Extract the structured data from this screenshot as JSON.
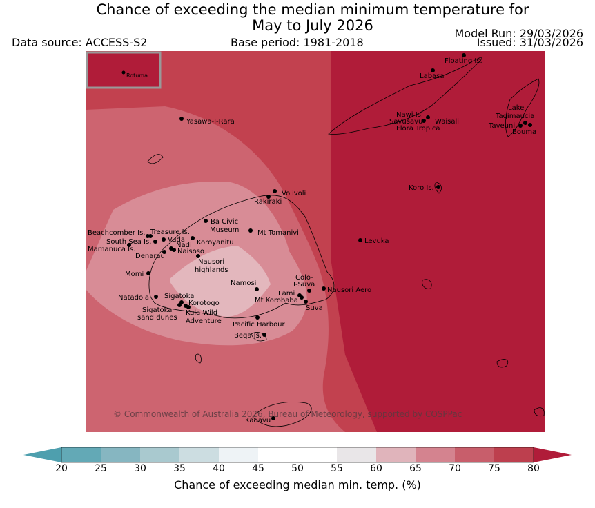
{
  "title": {
    "line1": "Chance of exceeding the median minimum temperature for",
    "line2": "May to July 2026"
  },
  "data_source": "Data source: ACCESS-S2",
  "base_period": "Base period: 1981-2018",
  "model_run": "Model Run: 29/03/2026",
  "issued": "Issued: 31/03/2026",
  "copyright": "© Commonwealth of Australia 2026, Bureau of Meteorology, supported by COSPPac",
  "inset_label": "Rotuma",
  "colorbar": {
    "label": "Chance of exceeding median min. temp. (%)",
    "ticks": [
      "20",
      "25",
      "30",
      "35",
      "40",
      "45",
      "50",
      "55",
      "60",
      "65",
      "70",
      "75",
      "80"
    ],
    "colors": [
      "#4e9fae",
      "#63a9b6",
      "#86b6c1",
      "#a9c9cf",
      "#ccdde1",
      "#eef3f6",
      "#ffffff",
      "#ffffff",
      "#e9e6e8",
      "#e0b4bb",
      "#d4838f",
      "#c85e6b",
      "#bd3f4e",
      "#b01c39"
    ]
  },
  "zone_colors": {
    "z80": "#b01c39",
    "z75": "#c2414f",
    "z70": "#cd6470",
    "z65": "#d88c96",
    "z60": "#e3b7bd"
  },
  "places": [
    {
      "name": "Floating Is."
    },
    {
      "name": "Labasa"
    },
    {
      "name": "Yasawa-I-Rara"
    },
    {
      "name": "Nawi Is."
    },
    {
      "name": "Savusavu"
    },
    {
      "name": "Waisali"
    },
    {
      "name": "Flora Tropica"
    },
    {
      "name": "Lake"
    },
    {
      "name": "Tagimaucia"
    },
    {
      "name": "Taveuni"
    },
    {
      "name": "Bouma"
    },
    {
      "name": "Koro Is."
    },
    {
      "name": "Volivoli"
    },
    {
      "name": "Rakiraki"
    },
    {
      "name": "Ba Civic"
    },
    {
      "name": "Museum"
    },
    {
      "name": "Mt Tomanivi"
    },
    {
      "name": "Beachcomber Is."
    },
    {
      "name": "Treasure Is."
    },
    {
      "name": "South Sea Is."
    },
    {
      "name": "Vuda"
    },
    {
      "name": "Koroyanitu"
    },
    {
      "name": "Nadi"
    },
    {
      "name": "Mamanuca Is."
    },
    {
      "name": "Naisoso"
    },
    {
      "name": "Denarau"
    },
    {
      "name": "Nausori"
    },
    {
      "name": "highlands"
    },
    {
      "name": "Levuka"
    },
    {
      "name": "Momi"
    },
    {
      "name": "Namosi"
    },
    {
      "name": "Colo-"
    },
    {
      "name": "I-Suva"
    },
    {
      "name": "Lami"
    },
    {
      "name": "Nausori Aero"
    },
    {
      "name": "Mt Korobaba"
    },
    {
      "name": "Suva"
    },
    {
      "name": "Natadola"
    },
    {
      "name": "Sigatoka"
    },
    {
      "name": "Korotogo"
    },
    {
      "name": "Sigatoka"
    },
    {
      "name": "sand dunes"
    },
    {
      "name": "Kula Wild"
    },
    {
      "name": "Adventure"
    },
    {
      "name": "Pacific Harbour"
    },
    {
      "name": "Beqa Is."
    },
    {
      "name": "Kadavu"
    }
  ]
}
